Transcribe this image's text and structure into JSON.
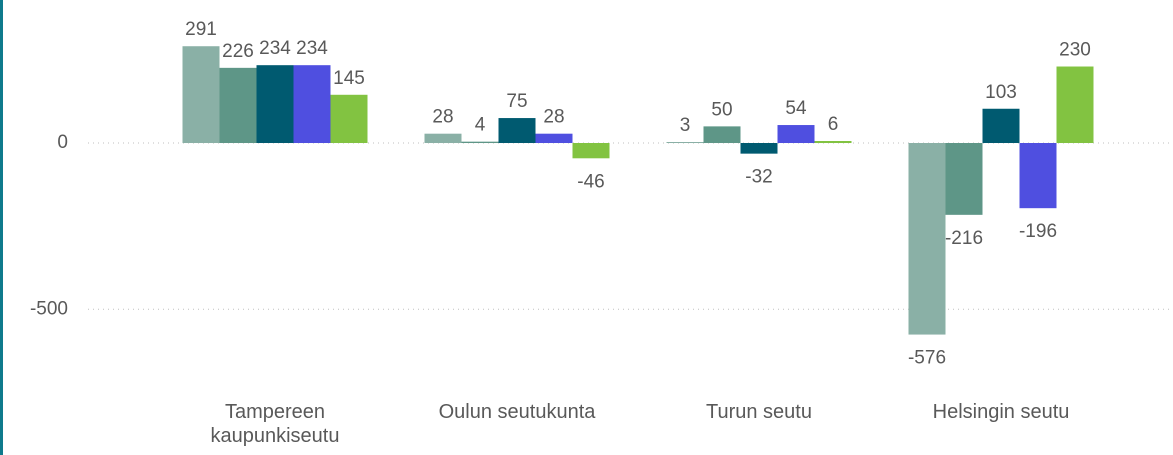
{
  "chart_data": {
    "type": "bar",
    "categories": [
      "Tampereen kaupunkiseutu",
      "Oulun seutukunta",
      "Turun seutu",
      "Helsingin seutu"
    ],
    "series": [
      {
        "color": "#8ab0a6",
        "values": [
          291,
          28,
          3,
          -576
        ]
      },
      {
        "color": "#5e9687",
        "values": [
          226,
          4,
          50,
          -216
        ]
      },
      {
        "color": "#005a70",
        "values": [
          234,
          75,
          -32,
          103
        ]
      },
      {
        "color": "#4f4fe0",
        "values": [
          234,
          28,
          54,
          -196
        ]
      },
      {
        "color": "#82c341",
        "values": [
          145,
          -46,
          6,
          230
        ]
      }
    ],
    "ylim": [
      -700,
      430
    ],
    "yticks": [
      -500,
      0
    ],
    "grid": true
  }
}
